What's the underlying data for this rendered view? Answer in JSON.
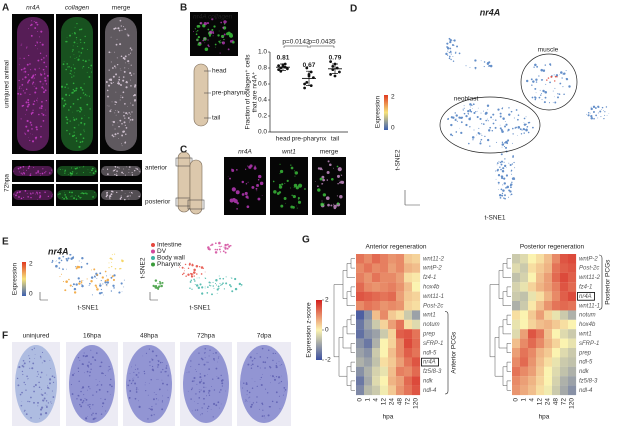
{
  "panels": {
    "A": {
      "label": "A",
      "channels": [
        "nr4A",
        "collagen",
        "merge"
      ],
      "rows": [
        "uninjured animal",
        "72hpa"
      ],
      "schematic": [
        "anterior",
        "posterior"
      ]
    },
    "B": {
      "label": "B",
      "channels": [
        "nr4A",
        "collagen"
      ],
      "schematic": [
        "head",
        "pre-pharynx",
        "tail"
      ]
    },
    "C": {
      "label": "C",
      "channels": [
        "nr4A",
        "wnt1",
        "merge"
      ]
    },
    "D": {
      "label": "D",
      "title": "nr4A",
      "colorbar": "Expression",
      "colorbar_ticks": [
        0,
        2
      ],
      "clusters": [
        "muscle",
        "neoblast"
      ],
      "xlabel": "t-SNE1",
      "ylabel": "t-SNE2"
    },
    "E": {
      "label": "E",
      "title": "nr4A",
      "colorbar": "Expression",
      "colorbar_ticks": [
        0,
        2
      ],
      "legend": [
        {
          "name": "Intestine",
          "color": "#e5473d"
        },
        {
          "name": "DV",
          "color": "#d2479b"
        },
        {
          "name": "Body wall",
          "color": "#3fb3a5"
        },
        {
          "name": "Pharynx",
          "color": "#3a9b3a"
        }
      ],
      "xlabel": "t-SNE1",
      "ylabel": "t-SNE2"
    },
    "F": {
      "label": "F",
      "timepoints": [
        "uninjured",
        "16hpa",
        "48hpa",
        "72hpa",
        "7dpa"
      ]
    },
    "G": {
      "label": "G"
    }
  },
  "chart_data": [
    {
      "type": "dot",
      "categories": [
        "head",
        "pre-pharynx",
        "tail"
      ],
      "values": [
        0.81,
        0.67,
        0.79
      ],
      "value_labels": [
        "0.81",
        "0.67",
        "0.79"
      ],
      "errors": [
        0.04,
        0.09,
        0.06
      ],
      "points": [
        [
          0.78,
          0.8,
          0.82,
          0.85,
          0.79,
          0.83,
          0.76,
          0.84,
          0.81
        ],
        [
          0.55,
          0.62,
          0.7,
          0.75,
          0.68,
          0.6,
          0.8,
          0.72,
          0.58
        ],
        [
          0.72,
          0.78,
          0.85,
          0.8,
          0.75,
          0.88,
          0.82,
          0.7
        ]
      ],
      "color": "#111111",
      "ylim": [
        0,
        1
      ],
      "yticks": [
        {
          "value": 0,
          "label": "0.0"
        },
        0.2,
        0.4,
        0.6,
        0.8,
        {
          "value": 1,
          "label": "1.0"
        }
      ],
      "ylabel": [
        "Fraction of collagen⁺ cells",
        "that are nr4A⁺"
      ],
      "annotations": [
        "p=0.0142",
        "p=0.0435"
      ]
    },
    {
      "type": "heatmap",
      "title": "Anterior regeneration",
      "rows": [
        "wnt11-2",
        "wntP-2",
        "fz4-1",
        "hox4b",
        "wnt11-1",
        "Post-2c",
        "wnt1",
        "notum",
        "prep",
        "sFRP-1",
        "ndl-5",
        "nr4A",
        "fz5/8-3",
        "ndk",
        "ndl-4"
      ],
      "columns": [
        0,
        1,
        4,
        12,
        24,
        48,
        72,
        120
      ],
      "xlabel": "hpa",
      "highlight_row": 11,
      "group_label": "Anterior PCGs",
      "values": [
        [
          1.2,
          1.0,
          1.3,
          1.1,
          0.9,
          1.0,
          0.4,
          0.3
        ],
        [
          1.0,
          1.2,
          1.0,
          1.1,
          0.8,
          1.0,
          0.6,
          0.5
        ],
        [
          1.1,
          0.9,
          1.2,
          1.0,
          1.0,
          0.8,
          0.2,
          0.1
        ],
        [
          1.3,
          1.0,
          0.9,
          1.0,
          1.1,
          0.9,
          0.5,
          0.0
        ],
        [
          1.5,
          1.4,
          1.3,
          1.2,
          1.3,
          0.8,
          0.4,
          0.3
        ],
        [
          1.0,
          1.2,
          1.1,
          0.9,
          1.0,
          0.9,
          0.3,
          0.2
        ],
        [
          -1.8,
          -1.2,
          0.5,
          1.0,
          0.4,
          0.2,
          -0.5,
          -1.0
        ],
        [
          -1.5,
          -1.0,
          -0.5,
          0.3,
          0.8,
          1.2,
          0.2,
          -0.3
        ],
        [
          -1.6,
          -1.2,
          -1.0,
          -0.5,
          0.3,
          1.4,
          1.5,
          1.2
        ],
        [
          -1.2,
          -1.5,
          -0.8,
          0.0,
          0.3,
          1.0,
          1.6,
          1.3
        ],
        [
          -1.0,
          -1.2,
          -0.5,
          0.0,
          0.5,
          1.0,
          1.4,
          1.2
        ],
        [
          -0.8,
          -1.0,
          -0.6,
          0.2,
          0.4,
          0.8,
          1.2,
          1.5
        ],
        [
          -1.2,
          -0.8,
          -0.4,
          -0.2,
          0.5,
          1.1,
          1.0,
          1.3
        ],
        [
          -1.5,
          -0.9,
          -0.3,
          0.0,
          0.6,
          0.8,
          1.3,
          1.6
        ],
        [
          -1.3,
          -0.7,
          -0.5,
          -0.1,
          0.4,
          0.9,
          1.2,
          1.5
        ]
      ],
      "colorbar": {
        "label": "Expression z-score",
        "lim": [
          -2,
          2
        ],
        "ticks": [
          2,
          0,
          -2
        ],
        "colors": [
          "#3b4fa0",
          "#fbf3b0",
          "#d4201e"
        ]
      }
    },
    {
      "type": "heatmap",
      "title": "Posterior regeneration",
      "rows": [
        "wntP-2",
        "Post-2c",
        "wnt11-2",
        "fz4-1",
        "nr4A",
        "wnt11-1",
        "notum",
        "hox4b",
        "wnt1",
        "sFRP-1",
        "prep",
        "ndl-5",
        "ndk",
        "fz5/8-3",
        "ndl-4"
      ],
      "columns": [
        0,
        1,
        4,
        12,
        24,
        48,
        72,
        120
      ],
      "xlabel": "hpa",
      "highlight_row": 4,
      "group_label": "Posterior PCGs",
      "values": [
        [
          -0.5,
          -0.3,
          0.0,
          0.2,
          0.5,
          1.0,
          1.5,
          1.6
        ],
        [
          -0.3,
          -0.5,
          0.2,
          0.4,
          0.6,
          1.2,
          1.4,
          1.5
        ],
        [
          -0.6,
          -0.4,
          0.0,
          0.5,
          0.8,
          1.3,
          1.6,
          1.4
        ],
        [
          -0.4,
          -0.2,
          0.3,
          0.6,
          0.8,
          1.1,
          1.5,
          1.3
        ],
        [
          -0.5,
          -0.6,
          -0.2,
          0.2,
          0.6,
          1.0,
          1.4,
          1.6
        ],
        [
          -0.8,
          -0.5,
          0.1,
          0.5,
          0.9,
          1.2,
          1.3,
          1.2
        ],
        [
          0.2,
          0.0,
          0.4,
          0.8,
          0.3,
          -0.2,
          -0.5,
          -0.8
        ],
        [
          -0.2,
          0.0,
          0.3,
          0.5,
          0.6,
          0.4,
          0.2,
          0.0
        ],
        [
          -0.3,
          0.8,
          1.5,
          1.2,
          0.5,
          0.0,
          -0.3,
          -0.5
        ],
        [
          0.5,
          1.0,
          1.3,
          1.0,
          0.6,
          0.3,
          0.0,
          -0.2
        ],
        [
          0.8,
          1.2,
          1.0,
          0.6,
          0.4,
          0.0,
          -0.3,
          -0.5
        ],
        [
          1.0,
          1.3,
          0.9,
          0.5,
          0.2,
          -0.2,
          -0.5,
          -0.6
        ],
        [
          1.2,
          1.0,
          0.8,
          0.4,
          0.0,
          -0.3,
          -0.6,
          -0.8
        ],
        [
          1.0,
          0.8,
          0.6,
          0.3,
          0.0,
          -0.4,
          -0.8,
          -1.0
        ],
        [
          0.9,
          0.7,
          0.5,
          0.2,
          -0.1,
          -0.5,
          -0.9,
          -1.2
        ]
      ]
    }
  ]
}
